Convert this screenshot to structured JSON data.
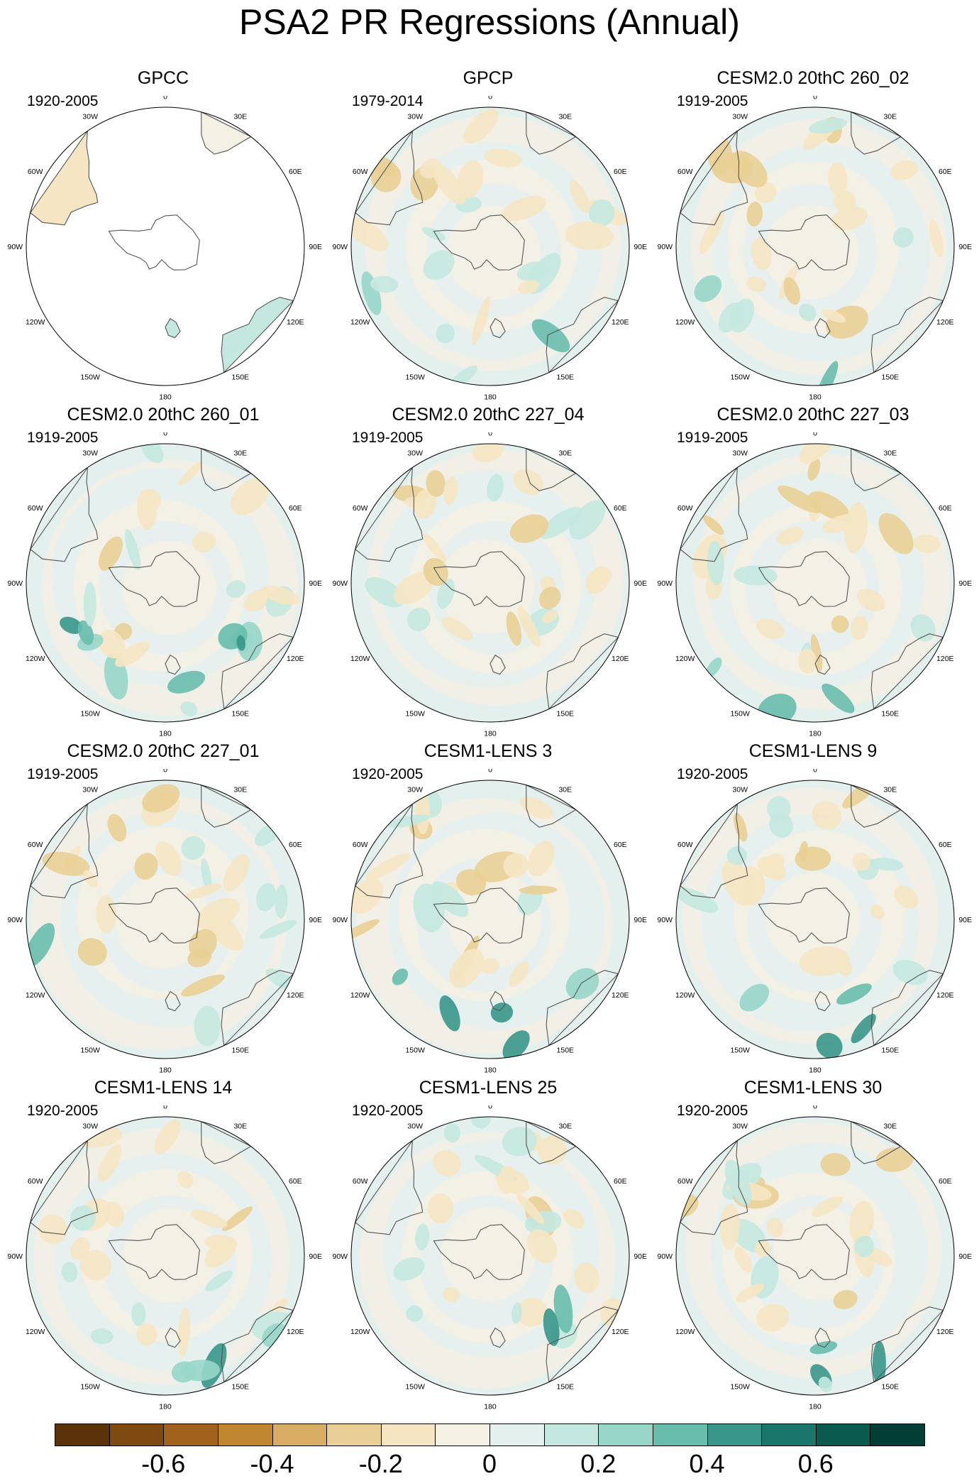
{
  "title": "PSA2 PR Regressions (Annual)",
  "longitude_labels": [
    "0",
    "30E",
    "60E",
    "90E",
    "120E",
    "150E",
    "180",
    "150W",
    "120W",
    "90W",
    "60W",
    "30W"
  ],
  "panels": [
    {
      "title": "GPCC",
      "period": "1920-2005",
      "land_only": true
    },
    {
      "title": "GPCP",
      "period": "1979-2014",
      "land_only": false
    },
    {
      "title": "CESM2.0 20thC 260_02",
      "period": "1919-2005",
      "land_only": false
    },
    {
      "title": "CESM2.0 20thC 260_01",
      "period": "1919-2005",
      "land_only": false
    },
    {
      "title": "CESM2.0 20thC 227_04",
      "period": "1919-2005",
      "land_only": false
    },
    {
      "title": "CESM2.0 20thC 227_03",
      "period": "1919-2005",
      "land_only": false
    },
    {
      "title": "CESM2.0 20thC 227_01",
      "period": "1919-2005",
      "land_only": false
    },
    {
      "title": "CESM1-LENS 3",
      "period": "1920-2005",
      "land_only": false
    },
    {
      "title": "CESM1-LENS 9",
      "period": "1920-2005",
      "land_only": false
    },
    {
      "title": "CESM1-LENS 14",
      "period": "1920-2005",
      "land_only": false
    },
    {
      "title": "CESM1-LENS 25",
      "period": "1920-2005",
      "land_only": false
    },
    {
      "title": "CESM1-LENS 30",
      "period": "1920-2005",
      "land_only": false
    }
  ],
  "colorbar": {
    "colors": [
      "#5c3208",
      "#7f4a10",
      "#a0621c",
      "#c0852f",
      "#d6ad62",
      "#e9cf95",
      "#f5e5c3",
      "#f5f0e4",
      "#e4f0ee",
      "#c4e8e0",
      "#97d6c9",
      "#68bdad",
      "#38968a",
      "#1a766b",
      "#0a5a4f",
      "#033e36"
    ],
    "labels": [
      "-0.6",
      "-0.4",
      "-0.2",
      "0",
      "0.2",
      "0.4",
      "0.6"
    ]
  }
}
